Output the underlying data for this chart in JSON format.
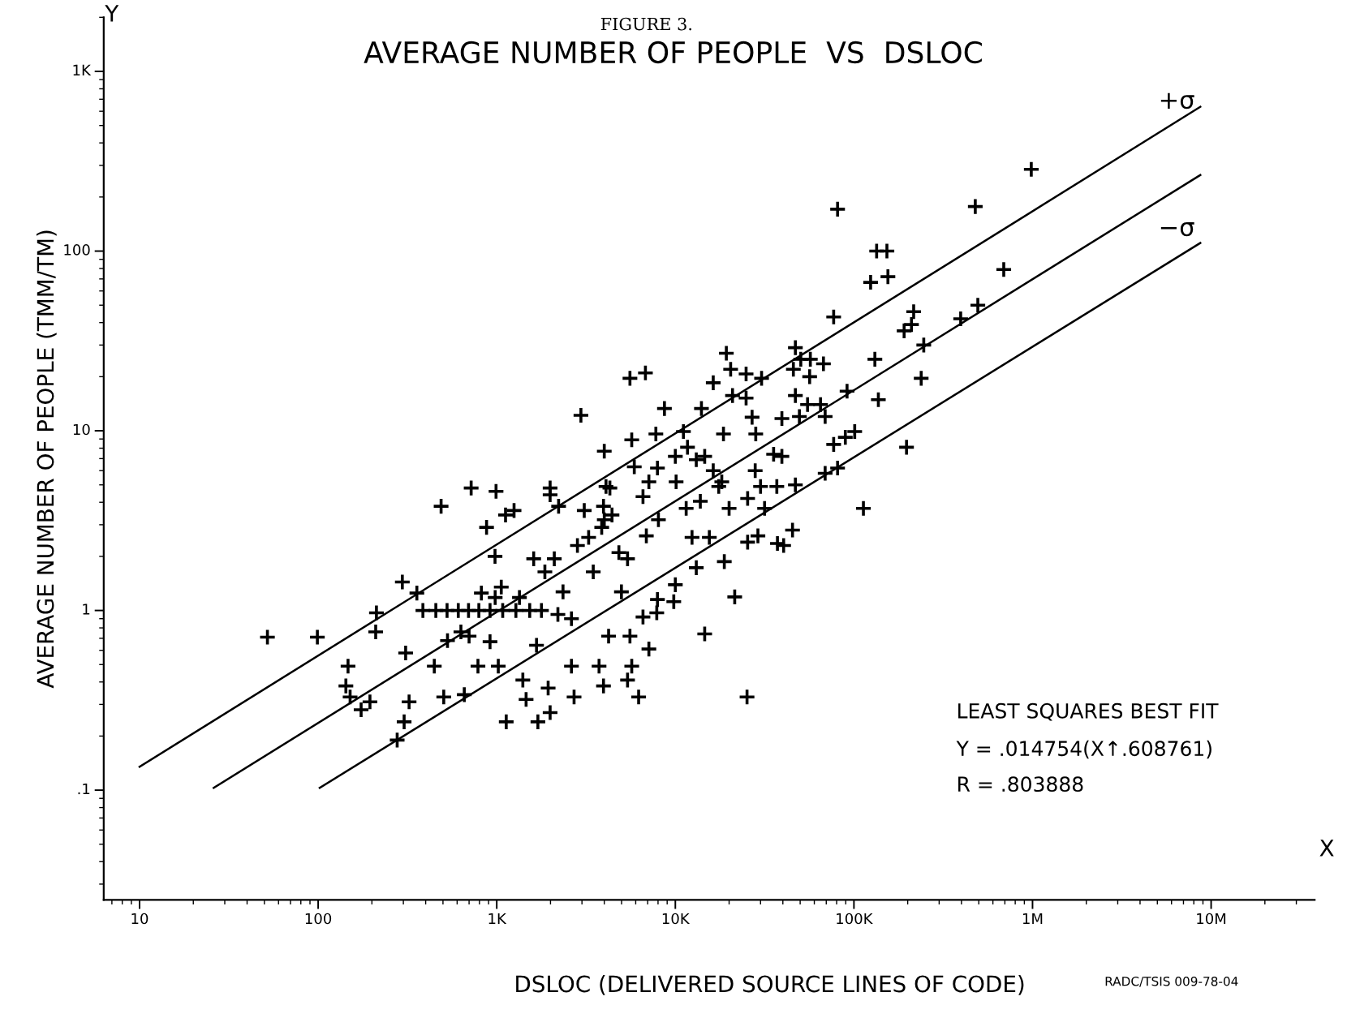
{
  "chart_data": {
    "type": "scatter",
    "title": "AVERAGE NUMBER OF PEOPLE  VS  DSLOC",
    "xlabel": "DSLOC (DELIVERED SOURCE LINES OF CODE)",
    "ylabel": "AVERAGE NUMBER OF PEOPLE (TMM/TM)",
    "log": "xy",
    "grid": false,
    "xlim": [
      6.3,
      38000000
    ],
    "ylim": [
      0.0245,
      2000
    ],
    "xticks": [
      {
        "value": 10,
        "label": "10"
      },
      {
        "value": 100,
        "label": "100"
      },
      {
        "value": 1000,
        "label": "1K"
      },
      {
        "value": 10000,
        "label": "10K"
      },
      {
        "value": 100000,
        "label": "100K"
      },
      {
        "value": 1000000,
        "label": "1M"
      },
      {
        "value": 10000000,
        "label": "10M"
      }
    ],
    "yticks": [
      {
        "value": 0.1,
        "label": ".1"
      },
      {
        "value": 1,
        "label": "1"
      },
      {
        "value": 10,
        "label": "10"
      },
      {
        "value": 100,
        "label": "100"
      },
      {
        "value": 1000,
        "label": "1K"
      }
    ],
    "series": [
      {
        "color": "#000000",
        "marker": "cross",
        "x": [
          52,
          99,
          296,
          357,
          212,
          210,
          147,
          143,
          151,
          174,
          195,
          309,
          323,
          303,
          277,
          488,
          719,
          991,
          877,
          978,
          1120,
          1250,
          447,
          505,
          658,
          785,
          1020,
          1130,
          1700,
          1990,
          1400,
          1460,
          1940,
          1670,
          2620,
          2710,
          3740,
          3960,
          5700,
          5400,
          6230,
          4230,
          5570,
          6590,
          7870,
          9800,
          7940,
          14600,
          25200,
          21500,
          386,
          456,
          527,
          609,
          695,
          794,
          917,
          1080,
          1280,
          1530,
          1780,
          630,
          700,
          820,
          1060,
          980,
          1340,
          1610,
          1860,
          2100,
          2350,
          1990,
          1990,
          2220,
          2960,
          3090,
          2830,
          3270,
          3470,
          3870,
          3960,
          4420,
          4090,
          4000,
          4300,
          4000,
          4830,
          5400,
          5700,
          5890,
          5570,
          6800,
          6590,
          7110,
          6880,
          7940,
          8040,
          8690,
          7780,
          10100,
          11100,
          11700,
          10000,
          13100,
          14600,
          14000,
          16300,
          11500,
          13800,
          12400,
          15500,
          16300,
          19300,
          20400,
          20900,
          18600,
          18200,
          17500,
          20000,
          18800,
          24900,
          24900,
          26900,
          30400,
          28200,
          28000,
          30000,
          25400,
          31600,
          25400,
          29000,
          37000,
          35500,
          39500,
          39500,
          47000,
          45800,
          47000,
          50400,
          57000,
          56500,
          67500,
          55000,
          49500,
          65000,
          69000,
          47000,
          45300,
          37300,
          40400,
          69000,
          81000,
          77000,
          89500,
          91500,
          101000,
          77000,
          81000,
          113000,
          131000,
          137000,
          124000,
          134000,
          153000,
          155000,
          197000,
          191000,
          216000,
          238000,
          246000,
          396000,
          494000,
          478000,
          690000,
          984000,
          210000,
          7110,
          10000,
          13100,
          2200,
          2620,
          4990,
          917,
          530
        ],
        "values": [
          0.71,
          0.71,
          1.44,
          1.25,
          0.97,
          0.76,
          0.49,
          0.38,
          0.33,
          0.28,
          0.31,
          0.58,
          0.31,
          0.24,
          0.19,
          3.8,
          4.8,
          4.6,
          2.9,
          2.0,
          3.4,
          3.6,
          0.49,
          0.33,
          0.34,
          0.49,
          0.49,
          0.24,
          0.24,
          0.27,
          0.41,
          0.32,
          0.37,
          0.64,
          0.49,
          0.33,
          0.49,
          0.38,
          0.49,
          0.41,
          0.33,
          0.72,
          0.72,
          0.92,
          0.97,
          1.12,
          1.15,
          0.74,
          0.33,
          1.19,
          1.0,
          1.0,
          1.0,
          1.0,
          1.0,
          1.0,
          1.0,
          1.0,
          1.0,
          1.0,
          1.0,
          0.76,
          0.72,
          1.25,
          1.35,
          1.18,
          1.18,
          1.94,
          1.64,
          1.94,
          1.27,
          4.8,
          4.4,
          3.8,
          12.2,
          3.6,
          2.3,
          2.55,
          1.64,
          2.9,
          3.8,
          3.4,
          4.9,
          7.7,
          4.8,
          3.2,
          2.1,
          1.94,
          8.9,
          6.3,
          19.6,
          21,
          4.3,
          5.2,
          2.6,
          6.2,
          3.2,
          13.3,
          9.6,
          5.2,
          9.9,
          8.1,
          7.2,
          6.9,
          7.2,
          13.3,
          6.0,
          3.7,
          4.05,
          2.55,
          2.55,
          18.5,
          27,
          22,
          15.7,
          9.6,
          5.2,
          4.9,
          3.7,
          1.87,
          20.7,
          15.2,
          11.9,
          19.6,
          9.6,
          6.0,
          4.9,
          4.2,
          3.7,
          2.4,
          2.6,
          4.9,
          7.4,
          7.2,
          11.7,
          15.7,
          22,
          29,
          25,
          25,
          20,
          23.6,
          14,
          12,
          14,
          12,
          5.0,
          2.8,
          2.36,
          2.3,
          5.8,
          6.2,
          8.4,
          9.2,
          16.6,
          9.9,
          43,
          171,
          3.7,
          25,
          14.9,
          67,
          100,
          100,
          72,
          8.1,
          36,
          46,
          19.6,
          30,
          42,
          50,
          177,
          79,
          285,
          39,
          0.61,
          1.39,
          1.73,
          0.95,
          0.9,
          1.27,
          0.67,
          0.68
        ]
      },
      {
        "type": "line",
        "color": "#000000",
        "marker": "none",
        "line_style": "solid",
        "x": [
          10,
          8700000
        ],
        "values": [
          0.135,
          635
        ]
      },
      {
        "type": "line",
        "color": "#000000",
        "marker": "none",
        "line_style": "solid",
        "x": [
          26,
          8700000
        ],
        "values": [
          0.103,
          265
        ]
      },
      {
        "type": "line",
        "color": "#000000",
        "marker": "none",
        "line_style": "solid",
        "x": [
          102,
          8700000
        ],
        "values": [
          0.103,
          111
        ]
      }
    ],
    "annotations": [
      "FIGURE 3.",
      "LEAST SQUARES BEST FIT",
      "Y = .014754(X↑.608761)",
      "R = .803888",
      "RADC/TSIS 009-78-04",
      "Y",
      "X",
      "+σ",
      "−σ"
    ]
  }
}
